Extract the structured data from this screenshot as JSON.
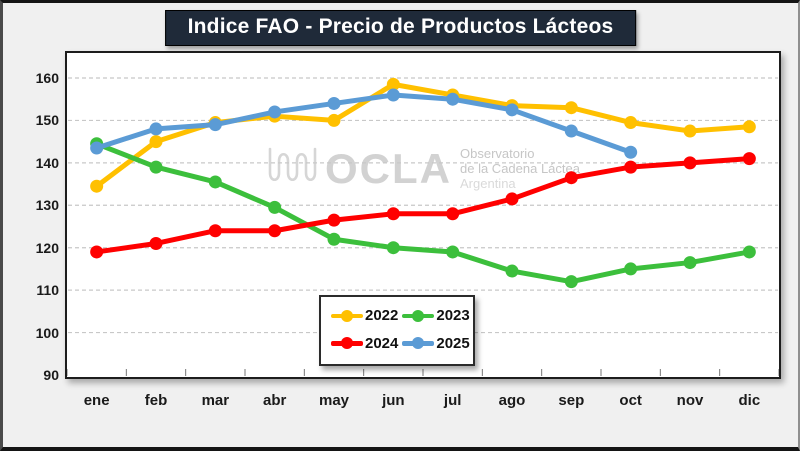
{
  "title": "Indice FAO - Precio de Productos Lácteos",
  "watermark": {
    "brand": "OCLA",
    "line1": "Observatorio",
    "line2": "de la Cadena Láctea",
    "line3": "Argentina"
  },
  "colors": {
    "title_bg": "#1F2A39",
    "background": "#F0F0F0",
    "plot_border": "#1d1d1d",
    "grid": "#C8C8C8",
    "axis_tick": "#777777"
  },
  "chart_data": {
    "type": "line",
    "title": "Indice FAO - Precio de Productos Lácteos",
    "xlabel": "",
    "ylabel": "",
    "categories": [
      "ene",
      "feb",
      "mar",
      "abr",
      "may",
      "jun",
      "jul",
      "ago",
      "sep",
      "oct",
      "nov",
      "dic"
    ],
    "y_ticks": [
      90,
      100,
      110,
      120,
      130,
      140,
      150,
      160
    ],
    "ylim": [
      90,
      166
    ],
    "grid": "horizontal-dashed",
    "legend_position": "bottom-center-inside",
    "series": [
      {
        "name": "2022",
        "color": "#FFC000",
        "values": [
          134.5,
          145,
          149.5,
          151,
          150,
          158.5,
          156,
          153.5,
          153,
          149.5,
          147.5,
          148.5
        ]
      },
      {
        "name": "2023",
        "color": "#3CBF3C",
        "values": [
          144.5,
          139,
          135.5,
          129.5,
          122,
          120,
          119,
          114.5,
          112,
          115,
          116.5,
          119
        ]
      },
      {
        "name": "2024",
        "color": "#FF0000",
        "values": [
          119,
          121,
          124,
          124,
          126.5,
          128,
          128,
          131.5,
          136.5,
          139,
          140,
          141
        ]
      },
      {
        "name": "2025",
        "color": "#5B9BD5",
        "values": [
          143.5,
          148,
          149,
          152,
          154,
          156,
          155,
          152.5,
          147.5,
          142.5,
          null,
          null
        ]
      }
    ]
  }
}
